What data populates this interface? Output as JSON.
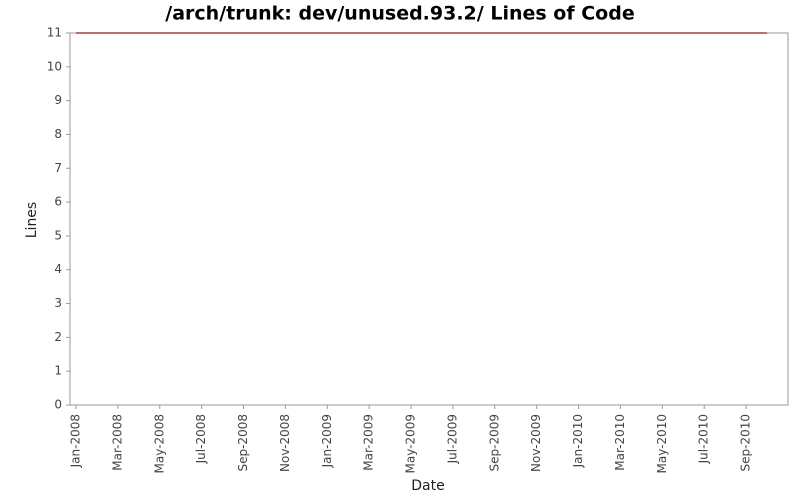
{
  "chart_data": {
    "type": "line",
    "title": "/arch/trunk: dev/unused.93.2/ Lines of Code",
    "x_label": "Date",
    "y_label": "Lines",
    "x": [
      "Jan-2008",
      "Oct-2010"
    ],
    "series": [
      {
        "name": "Lines",
        "color": "#8b1a1a",
        "values": [
          11,
          11
        ]
      }
    ],
    "xlim": [
      "Jan-2008",
      "Oct-2010"
    ],
    "xticks": [
      "Jan-2008",
      "Mar-2008",
      "May-2008",
      "Jul-2008",
      "Sep-2008",
      "Nov-2008",
      "Jan-2009",
      "Mar-2009",
      "May-2009",
      "Jul-2009",
      "Sep-2009",
      "Nov-2009",
      "Jan-2010",
      "Mar-2010",
      "May-2010",
      "Jul-2010",
      "Sep-2010"
    ],
    "ylim": [
      0,
      11
    ],
    "yticks": [
      0,
      1,
      2,
      3,
      4,
      5,
      6,
      7,
      8,
      9,
      10,
      11
    ],
    "grid": false
  }
}
